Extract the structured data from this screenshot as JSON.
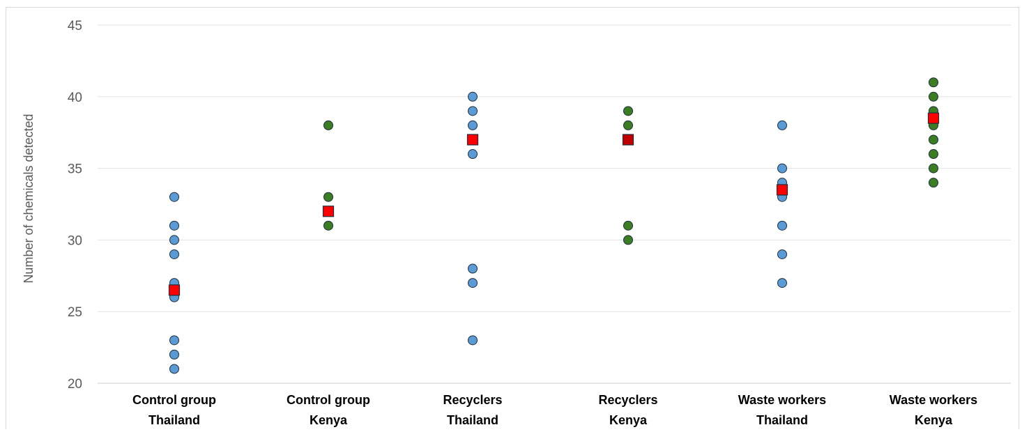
{
  "chart_data": {
    "type": "scatter",
    "title": "",
    "ylabel": "Number of chemicals detected",
    "xlabel": "",
    "ylim": [
      20,
      45
    ],
    "yticks": [
      20,
      25,
      30,
      35,
      40,
      45
    ],
    "grid": "horizontal",
    "legend": "none",
    "categories": [
      [
        "Control group",
        "Thailand"
      ],
      [
        "Control group",
        "Kenya"
      ],
      [
        "Recyclers",
        "Thailand"
      ],
      [
        "Recyclers",
        "Kenya"
      ],
      [
        "Waste workers",
        "Thailand"
      ],
      [
        "Waste workers",
        "Kenya"
      ]
    ],
    "series": [
      {
        "marker": "circle",
        "values": [
          [
            33,
            31,
            30,
            29,
            27,
            26.5,
            26,
            23,
            22,
            21
          ],
          [
            38,
            33,
            31
          ],
          [
            40,
            39,
            38,
            36,
            28,
            27,
            23
          ],
          [
            39,
            38,
            37,
            31,
            30
          ],
          [
            38,
            35,
            34,
            33.5,
            33,
            31,
            29,
            27
          ],
          [
            41,
            40,
            39,
            38.5,
            38,
            37,
            36,
            35,
            34
          ]
        ]
      },
      {
        "marker": "square",
        "values": [
          26.5,
          32,
          37,
          37,
          33.5,
          38.5
        ]
      }
    ],
    "colors": {
      "thailand": "#5b9bd5",
      "kenya": "#3a7d22",
      "kenya_mean_fill": "#c00000",
      "mean_fill": "#ff0000",
      "marker_outline": "#1f2e3d",
      "grid": "#e3e3e3",
      "axis": "#cccccc"
    }
  }
}
